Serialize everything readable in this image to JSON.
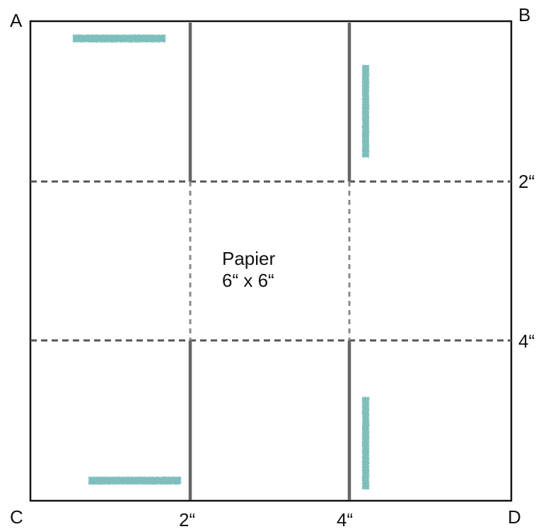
{
  "corners": {
    "top_left": "A",
    "top_right": "B",
    "bottom_left": "C",
    "bottom_right": "D"
  },
  "measurements": {
    "right_2": "2“",
    "right_4": "4“",
    "bottom_2": "2“",
    "bottom_4": "4“"
  },
  "paper": {
    "name": "Papier",
    "size": "6“ x 6“"
  },
  "colors": {
    "outline": "#111111",
    "cut_line": "#666666",
    "fold_line": "#555555",
    "fold_line_light": "#888888",
    "glue_mark": "#7ebfbd"
  }
}
